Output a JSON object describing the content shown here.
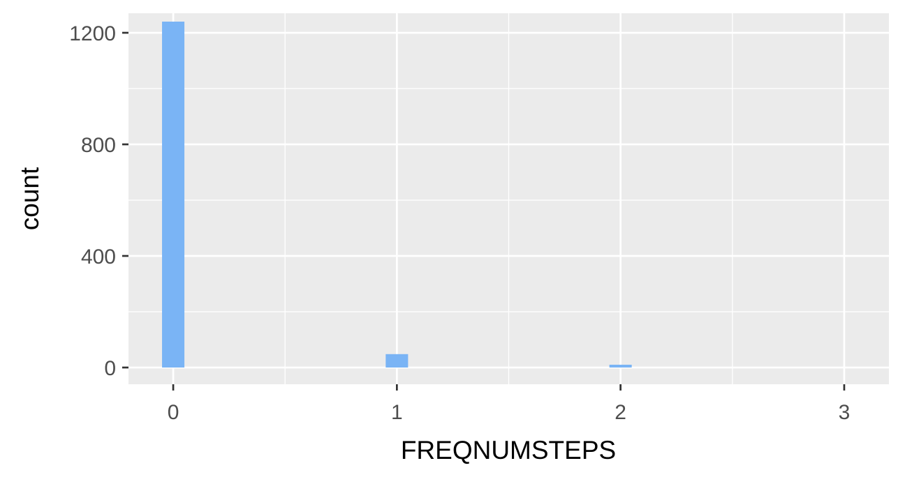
{
  "chart_data": {
    "type": "bar",
    "xlabel": "FREQNUMSTEPS",
    "ylabel": "count",
    "x": [
      0,
      1,
      2,
      3
    ],
    "values": [
      1240,
      48,
      10,
      0
    ],
    "bin_width": 0.1,
    "xlim": [
      -0.2,
      3.2
    ],
    "ylim": [
      -60,
      1270
    ],
    "x_ticks": [
      0,
      1,
      2,
      3
    ],
    "y_ticks": [
      0,
      400,
      800,
      1200
    ],
    "grid": true,
    "bar_color": "#7ab4f5",
    "panel_color": "#ebebeb",
    "grid_color": "#ffffff"
  }
}
